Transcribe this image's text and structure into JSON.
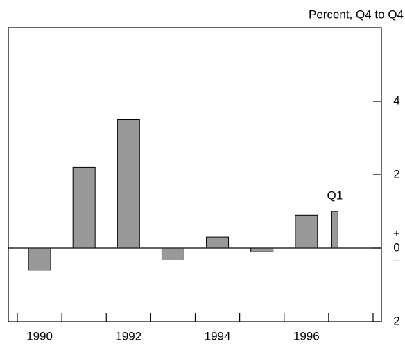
{
  "chart_data": {
    "type": "bar",
    "axis_title": "Percent, Q4 to Q4",
    "categories": [
      "1990",
      null,
      "1992",
      null,
      "1994",
      null,
      "1996",
      "Q1"
    ],
    "values": [
      -0.6,
      2.2,
      3.5,
      -0.3,
      0.3,
      -0.1,
      0.9,
      1.0
    ],
    "color": "#999999",
    "ylim": [
      -2,
      6
    ],
    "yticks": [
      {
        "value": -2,
        "label": "2"
      },
      0,
      2,
      4
    ],
    "zero_signs": [
      "+",
      "–"
    ]
  }
}
